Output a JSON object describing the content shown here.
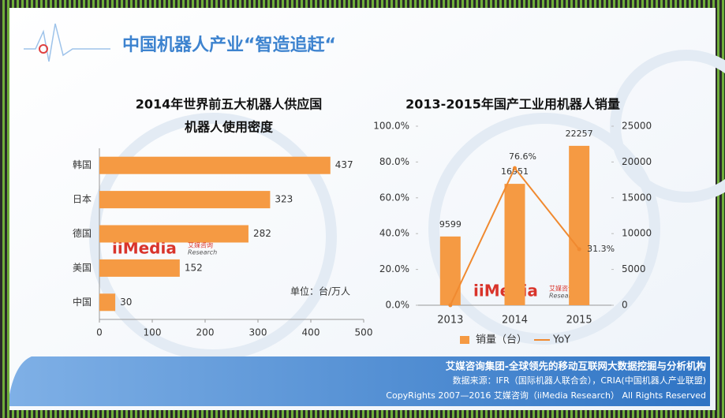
{
  "header": {
    "title": "中国机器人产业“智造追赶“"
  },
  "chart_data": [
    {
      "type": "bar",
      "orientation": "horizontal",
      "title": [
        "2014年世界前五大机器人供应国",
        "机器人使用密度"
      ],
      "categories": [
        "韩国",
        "日本",
        "德国",
        "美国",
        "中国"
      ],
      "values": [
        437,
        323,
        282,
        152,
        30
      ],
      "color": "#f59a43",
      "xlim": [
        0,
        500
      ],
      "xticks": [
        0,
        100,
        200,
        300,
        400,
        500
      ],
      "annotation": "单位：台/万人"
    },
    {
      "type": "bar-line",
      "title": "2013-2015年国产工业用机器人销量",
      "categories": [
        "2013",
        "2014",
        "2015"
      ],
      "series": [
        {
          "name": "销量（台）",
          "type": "bar",
          "axis": "y2",
          "color": "#f59a43",
          "values": [
            9599,
            16951,
            22257
          ]
        },
        {
          "name": "YoY",
          "type": "line",
          "color": "#f08a30",
          "values": [
            0,
            76.6,
            31.3
          ],
          "value_labels": [
            null,
            "76.6%",
            "31.3%"
          ]
        }
      ],
      "ylim": [
        0,
        100
      ],
      "yticks": [
        {
          "value": 0,
          "label": "0.0%"
        },
        {
          "value": 20,
          "label": "20.0%"
        },
        {
          "value": 40,
          "label": "40.0%"
        },
        {
          "value": 60,
          "label": "60.0%"
        },
        {
          "value": 80,
          "label": "80.0%"
        },
        {
          "value": 100,
          "label": "100.0%"
        }
      ],
      "y2lim": [
        0,
        25000
      ],
      "y2ticks": [
        0,
        5000,
        10000,
        15000,
        20000,
        25000
      ],
      "legend": "bottom"
    }
  ],
  "watermark": {
    "brand": "iiMedia",
    "sub": "Research",
    "cn": "艾媒咨询"
  },
  "footer": {
    "line1": "艾媒咨询集团-全球领先的移动互联网大数据挖掘与分析机构",
    "line2": "数据来源：IFR（国际机器人联合会），CRIA(中国机器人产业联盟)",
    "line3": "CopyRights 2007—2016 艾媒咨询（iiMedia Research） All Rights Reserved"
  }
}
